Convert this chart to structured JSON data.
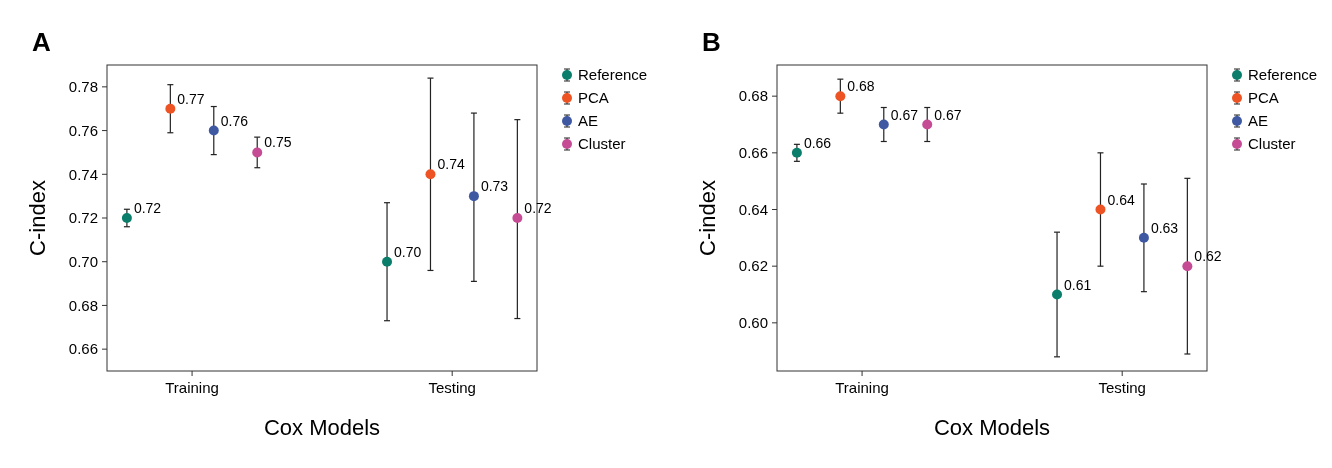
{
  "chart_data": [
    {
      "type": "scatter",
      "title": "A",
      "xlabel": "Cox Models",
      "ylabel": "C-index",
      "categories": [
        "Training",
        "Testing"
      ],
      "ylim": [
        0.65,
        0.79
      ],
      "yticks": [
        {
          "value": 0.66,
          "label": "0.66"
        },
        {
          "value": 0.68,
          "label": "0.68"
        },
        {
          "value": 0.7,
          "label": "0.70"
        },
        {
          "value": 0.72,
          "label": "0.72"
        },
        {
          "value": 0.74,
          "label": "0.74"
        },
        {
          "value": 0.76,
          "label": "0.76"
        },
        {
          "value": 0.78,
          "label": "0.78"
        }
      ],
      "legend": "top right",
      "marker": "circle",
      "grid": false,
      "series": [
        {
          "name": "Reference",
          "color": "#0a7d6b",
          "values": [
            0.72,
            0.7
          ],
          "value_labels": [
            "0.72",
            "0.70"
          ],
          "errors": [
            [
              0.716,
              0.724
            ],
            [
              0.673,
              0.727
            ]
          ]
        },
        {
          "name": "PCA",
          "color": "#ee5323",
          "values": [
            0.77,
            0.74
          ],
          "value_labels": [
            "0.77",
            "0.74"
          ],
          "errors": [
            [
              0.759,
              0.781
            ],
            [
              0.696,
              0.784
            ]
          ]
        },
        {
          "name": "AE",
          "color": "#3f58a2",
          "values": [
            0.76,
            0.73
          ],
          "value_labels": [
            "0.76",
            "0.73"
          ],
          "errors": [
            [
              0.749,
              0.771
            ],
            [
              0.691,
              0.768
            ]
          ]
        },
        {
          "name": "Cluster",
          "color": "#c54b95",
          "values": [
            0.75,
            0.72
          ],
          "value_labels": [
            "0.75",
            "0.72"
          ],
          "errors": [
            [
              0.743,
              0.757
            ],
            [
              0.674,
              0.765
            ]
          ]
        }
      ]
    },
    {
      "type": "scatter",
      "title": "B",
      "xlabel": "Cox Models",
      "ylabel": "C-index",
      "categories": [
        "Training",
        "Testing"
      ],
      "ylim": [
        0.583,
        0.691
      ],
      "yticks": [
        {
          "value": 0.6,
          "label": "0.60"
        },
        {
          "value": 0.62,
          "label": "0.62"
        },
        {
          "value": 0.64,
          "label": "0.64"
        },
        {
          "value": 0.66,
          "label": "0.66"
        },
        {
          "value": 0.68,
          "label": "0.68"
        }
      ],
      "legend": "top right",
      "marker": "circle",
      "grid": false,
      "series": [
        {
          "name": "Reference",
          "color": "#0a7d6b",
          "values": [
            0.66,
            0.61
          ],
          "value_labels": [
            "0.66",
            "0.61"
          ],
          "errors": [
            [
              0.657,
              0.663
            ],
            [
              0.588,
              0.632
            ]
          ]
        },
        {
          "name": "PCA",
          "color": "#ee5323",
          "values": [
            0.68,
            0.64
          ],
          "value_labels": [
            "0.68",
            "0.64"
          ],
          "errors": [
            [
              0.674,
              0.686
            ],
            [
              0.62,
              0.66
            ]
          ]
        },
        {
          "name": "AE",
          "color": "#3f58a2",
          "values": [
            0.67,
            0.63
          ],
          "value_labels": [
            "0.67",
            "0.63"
          ],
          "errors": [
            [
              0.664,
              0.676
            ],
            [
              0.611,
              0.649
            ]
          ]
        },
        {
          "name": "Cluster",
          "color": "#c54b95",
          "values": [
            0.67,
            0.62
          ],
          "value_labels": [
            "0.67",
            "0.62"
          ],
          "errors": [
            [
              0.664,
              0.676
            ],
            [
              0.589,
              0.651
            ]
          ]
        }
      ]
    }
  ]
}
